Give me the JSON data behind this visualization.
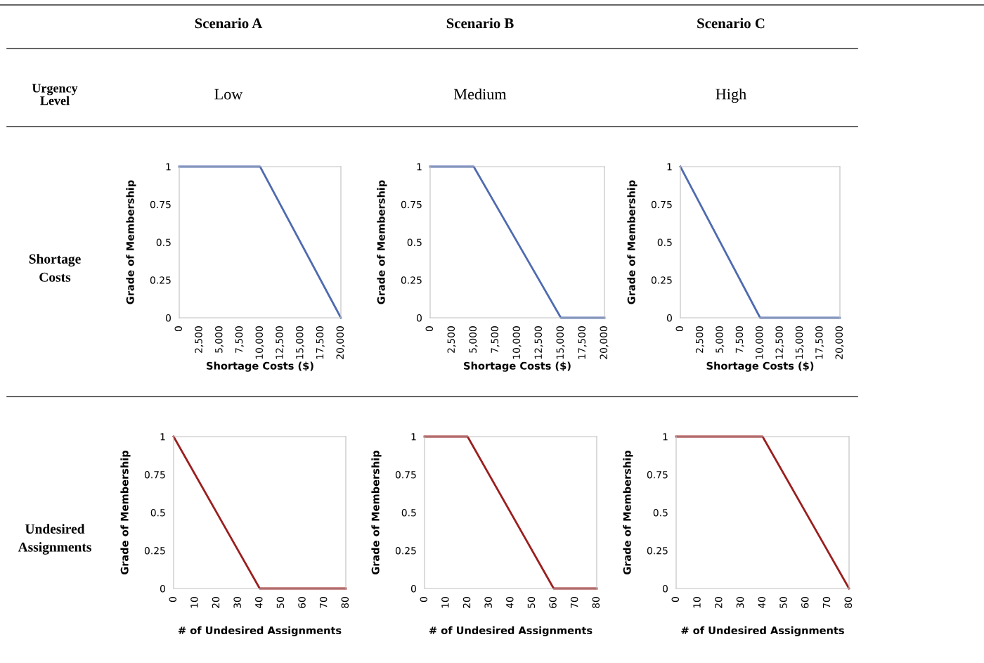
{
  "chart_data": [
    {
      "type": "other",
      "annotations": [
        "Scenario A",
        "Scenario B",
        "Scenario C",
        "Urgency\nLevel",
        "Low",
        "Medium",
        "High",
        "Shortage\nCosts",
        "Undesired\nAssignments"
      ]
    },
    {
      "type": "line",
      "xlabel": "Shortage Costs ($)",
      "ylabel": "Grade of Membership",
      "xlim": [
        0,
        20000
      ],
      "ylim": [
        0,
        1
      ],
      "xticks": [
        0,
        {
          "value": 2500,
          "label": "2,500"
        },
        {
          "value": 5000,
          "label": "5,000"
        },
        {
          "value": 7500,
          "label": "7,500"
        },
        {
          "value": 10000,
          "label": "10,000"
        },
        {
          "value": 12500,
          "label": "12,500"
        },
        {
          "value": 15000,
          "label": "15,000"
        },
        {
          "value": 17500,
          "label": "17,500"
        },
        {
          "value": 20000,
          "label": "20,000"
        }
      ],
      "yticks": [
        0,
        0.25,
        0.5,
        0.75,
        1
      ],
      "grid": false,
      "legend": false,
      "marker": "none",
      "series": [
        {
          "color": "#4f6bb0",
          "x": [
            0,
            10000,
            20000
          ],
          "values": [
            1,
            1,
            0
          ]
        }
      ]
    },
    {
      "type": "line",
      "xlabel": "Shortage Costs ($)",
      "ylabel": "Grade of Membership",
      "xlim": [
        0,
        20000
      ],
      "ylim": [
        0,
        1
      ],
      "xticks": [
        0,
        {
          "value": 2500,
          "label": "2,500"
        },
        {
          "value": 5000,
          "label": "5,000"
        },
        {
          "value": 7500,
          "label": "7,500"
        },
        {
          "value": 10000,
          "label": "10,000"
        },
        {
          "value": 12500,
          "label": "12,500"
        },
        {
          "value": 15000,
          "label": "15,000"
        },
        {
          "value": 17500,
          "label": "17,500"
        },
        {
          "value": 20000,
          "label": "20,000"
        }
      ],
      "yticks": [
        0,
        0.25,
        0.5,
        0.75,
        1
      ],
      "grid": false,
      "legend": false,
      "marker": "none",
      "series": [
        {
          "color": "#4f6bb0",
          "x": [
            0,
            5000,
            15000,
            20000
          ],
          "values": [
            1,
            1,
            0,
            0
          ]
        }
      ]
    },
    {
      "type": "line",
      "xlabel": "Shortage Costs ($)",
      "ylabel": "Grade of Membership",
      "xlim": [
        0,
        20000
      ],
      "ylim": [
        0,
        1
      ],
      "xticks": [
        0,
        {
          "value": 2500,
          "label": "2,500"
        },
        {
          "value": 5000,
          "label": "5,000"
        },
        {
          "value": 7500,
          "label": "7,500"
        },
        {
          "value": 10000,
          "label": "10,000"
        },
        {
          "value": 12500,
          "label": "12,500"
        },
        {
          "value": 15000,
          "label": "15,000"
        },
        {
          "value": 17500,
          "label": "17,500"
        },
        {
          "value": 20000,
          "label": "20,000"
        }
      ],
      "yticks": [
        0,
        0.25,
        0.5,
        0.75,
        1
      ],
      "grid": false,
      "legend": false,
      "marker": "none",
      "series": [
        {
          "color": "#4f6bb0",
          "x": [
            0,
            10000,
            20000
          ],
          "values": [
            1,
            0,
            0
          ]
        }
      ]
    },
    {
      "type": "line",
      "xlabel": "# of Undesired Assignments",
      "ylabel": "Grade of Membership",
      "xlim": [
        0,
        80
      ],
      "ylim": [
        0,
        1
      ],
      "xticks": [
        0,
        10,
        20,
        30,
        40,
        50,
        60,
        70,
        80
      ],
      "yticks": [
        0,
        0.25,
        0.5,
        0.75,
        1
      ],
      "grid": false,
      "legend": false,
      "marker": "none",
      "series": [
        {
          "color": "#9b1f1f",
          "x": [
            0,
            40,
            80
          ],
          "values": [
            1,
            0,
            0
          ]
        }
      ]
    },
    {
      "type": "line",
      "xlabel": "# of Undesired Assignments",
      "ylabel": "Grade of Membership",
      "xlim": [
        0,
        80
      ],
      "ylim": [
        0,
        1
      ],
      "xticks": [
        0,
        10,
        20,
        30,
        40,
        50,
        60,
        70,
        80
      ],
      "yticks": [
        0,
        0.25,
        0.5,
        0.75,
        1
      ],
      "grid": false,
      "legend": false,
      "marker": "none",
      "series": [
        {
          "color": "#9b1f1f",
          "x": [
            0,
            20,
            60,
            80
          ],
          "values": [
            1,
            1,
            0,
            0
          ]
        }
      ]
    },
    {
      "type": "line",
      "xlabel": "# of Undesired Assignments",
      "ylabel": "Grade of Membership",
      "xlim": [
        0,
        80
      ],
      "ylim": [
        0,
        1
      ],
      "xticks": [
        0,
        10,
        20,
        30,
        40,
        50,
        60,
        70,
        80
      ],
      "yticks": [
        0,
        0.25,
        0.5,
        0.75,
        1
      ],
      "grid": false,
      "legend": false,
      "marker": "none",
      "series": [
        {
          "color": "#9b1f1f",
          "x": [
            0,
            40,
            80
          ],
          "values": [
            1,
            1,
            0
          ]
        }
      ]
    }
  ]
}
